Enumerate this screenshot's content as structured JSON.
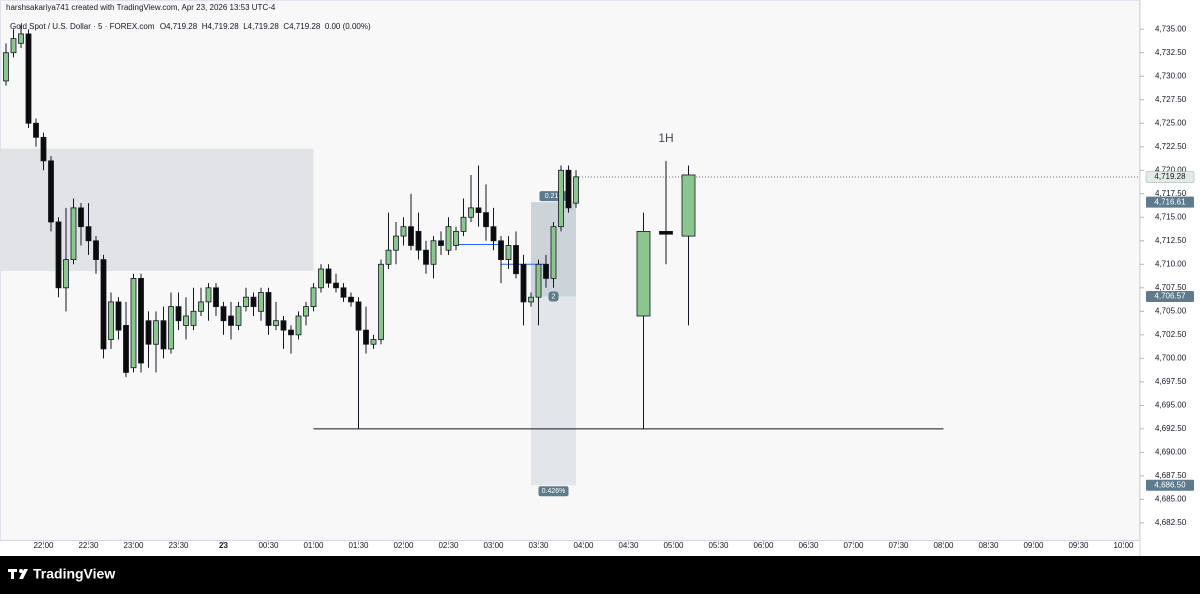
{
  "chart_data": {
    "type": "candlestick",
    "credit": "harshsakariya741 created with TradingView.com, Apr 23, 2026 13:53 UTC-4",
    "title": "Gold Spot / U.S. Dollar · 5 · FOREX.com",
    "ohlc_legend": [
      "O4,719.28",
      "H4,719.28",
      "L4,719.28",
      "C4,719.28",
      "0.00 (0.00%)"
    ],
    "brand": "TradingView",
    "up_color": "#8cc68f",
    "down_color": "#0b0b0b",
    "xlim": [
      "21:31",
      "10:11"
    ],
    "ylim": [
      4681,
      4738
    ],
    "x": [
      "21:35",
      "21:40",
      "21:45",
      "21:50",
      "21:55",
      "22:00",
      "22:05",
      "22:10",
      "22:15",
      "22:20",
      "22:25",
      "22:30",
      "22:35",
      "22:40",
      "22:45",
      "22:50",
      "22:55",
      "23:00",
      "23:05",
      "23:10",
      "23:15",
      "23:20",
      "23:25",
      "23:30",
      "23:35",
      "23:40",
      "23:45",
      "23:50",
      "23:55",
      "00:00",
      "00:05",
      "00:10",
      "00:15",
      "00:20",
      "00:25",
      "00:30",
      "00:35",
      "00:40",
      "00:45",
      "00:50",
      "00:55",
      "01:00",
      "01:05",
      "01:10",
      "01:15",
      "01:20",
      "01:25",
      "01:30",
      "01:35",
      "01:40",
      "01:45",
      "01:50",
      "01:55",
      "02:00",
      "02:05",
      "02:10",
      "02:15",
      "02:20",
      "02:25",
      "02:30",
      "02:35",
      "02:40",
      "02:45",
      "02:50",
      "02:55",
      "03:00",
      "03:05",
      "03:10",
      "03:15",
      "03:20",
      "03:25",
      "03:30",
      "03:35",
      "03:40",
      "03:45",
      "03:50",
      "03:55"
    ],
    "open": [
      4729.5,
      4732.5,
      4733.5,
      4734.5,
      4725,
      4723.5,
      4721,
      4714.5,
      4707.5,
      4710.5,
      4716,
      4714,
      4712.5,
      4710.5,
      4702,
      4706,
      4703.5,
      4699,
      4708.5,
      4704,
      4701.5,
      4704,
      4701,
      4705.5,
      4703.5,
      4703.5,
      4705,
      4706,
      4707.5,
      4705.5,
      4704.5,
      4703.5,
      4705.5,
      4706.5,
      4705,
      4707,
      4703.5,
      4704,
      4703,
      4702.5,
      4704.5,
      4705.5,
      4707.5,
      4709.5,
      4708,
      4707.5,
      4706.5,
      4706,
      4703,
      4701.5,
      4702,
      4710,
      4711.5,
      4713,
      4714,
      4713.5,
      4711.5,
      4710,
      4712.5,
      4711.5,
      4712,
      4713.5,
      4715,
      4716,
      4715.5,
      4714,
      4712.5,
      4710.5,
      4712,
      4710,
      4706,
      4706.5,
      4710,
      4708.5,
      4714,
      4720,
      4716.5
    ],
    "high": [
      4733.5,
      4735,
      4735.5,
      4735,
      4725.5,
      4724,
      4721.5,
      4715,
      4716,
      4717,
      4716.5,
      4716.5,
      4713,
      4711,
      4707,
      4706.5,
      4706,
      4709,
      4709,
      4705,
      4705,
      4705.5,
      4707,
      4707,
      4706.5,
      4707.5,
      4707.5,
      4708,
      4708,
      4706,
      4706,
      4706,
      4707.5,
      4707,
      4707.5,
      4707.5,
      4706,
      4704.5,
      4703.5,
      4705,
      4706,
      4708,
      4710,
      4710,
      4709,
      4708,
      4707,
      4706.5,
      4705.5,
      4702.5,
      4710.5,
      4715.5,
      4714.5,
      4715,
      4717.5,
      4715.5,
      4712.5,
      4713,
      4713.5,
      4715,
      4714,
      4717,
      4719.5,
      4720.5,
      4718.5,
      4716,
      4713,
      4713,
      4713.5,
      4711,
      4707,
      4710.5,
      4711,
      4714.5,
      4720.5,
      4720.5,
      4720
    ],
    "low": [
      4729,
      4732,
      4733,
      4724.5,
      4722.5,
      4720,
      4713.5,
      4706.5,
      4705,
      4710,
      4712,
      4711,
      4709,
      4700,
      4701,
      4702,
      4698,
      4698.5,
      4698.5,
      4699,
      4698.5,
      4700,
      4700.5,
      4703,
      4702,
      4703,
      4704.5,
      4704,
      4704.5,
      4702.5,
      4702,
      4703,
      4705,
      4704.5,
      4704,
      4702.5,
      4703,
      4701,
      4700.5,
      4702,
      4703.5,
      4705,
      4707,
      4707.5,
      4707,
      4706,
      4705.5,
      4692.5,
      4700.5,
      4701,
      4701.5,
      4709.5,
      4710,
      4712,
      4711.5,
      4710.5,
      4709,
      4708.5,
      4711,
      4711,
      4711.5,
      4713,
      4714.5,
      4714,
      4712.5,
      4711.5,
      4708,
      4709.5,
      4708.5,
      4703.5,
      4705.5,
      4703.5,
      4707.5,
      4707.5,
      4713.5,
      4715.5,
      4716
    ],
    "close": [
      4732.5,
      4734,
      4734.5,
      4725,
      4723.5,
      4721,
      4714.5,
      4707.5,
      4710.5,
      4716,
      4714,
      4712.5,
      4710.5,
      4701,
      4706,
      4703,
      4698.5,
      4708.5,
      4699.5,
      4701.5,
      4704,
      4701,
      4705.5,
      4704,
      4704.5,
      4705,
      4706,
      4707.5,
      4705.5,
      4704,
      4703.5,
      4705.5,
      4706.5,
      4705.5,
      4707,
      4703.5,
      4704,
      4703,
      4702.5,
      4704.5,
      4705.5,
      4707.5,
      4709.5,
      4708,
      4707.5,
      4706.5,
      4706,
      4703,
      4701.5,
      4702,
      4710,
      4711.5,
      4713,
      4714,
      4712,
      4711.5,
      4710,
      4712.5,
      4712,
      4714,
      4713.5,
      4715,
      4716,
      4715.5,
      4714,
      4712.5,
      4710.5,
      4712,
      4709,
      4706,
      4706.5,
      4710,
      4708.5,
      4714,
      4720,
      4716,
      4719.3
    ],
    "htf": {
      "label": "1H",
      "x": [
        "04:40",
        "04:55",
        "05:10"
      ],
      "open": [
        4704.5,
        4713.5,
        4713
      ],
      "high": [
        4715.5,
        4721,
        4720.5
      ],
      "low": [
        4692.5,
        4710,
        4703.5
      ],
      "close": [
        4713.5,
        4713.2,
        4719.5
      ]
    },
    "zone": {
      "low": 4709.3,
      "high": 4722.3,
      "from": "21:31",
      "to": "01:00",
      "color": "#e2e3e7"
    },
    "levels": [
      {
        "price": 4692.5,
        "from": "01:00",
        "to": "08:00",
        "color": "#131722"
      },
      {
        "price": 4712.1,
        "from": "02:33",
        "to": "03:05",
        "color": "#2962ff"
      },
      {
        "price": 4710.0,
        "from": "03:05",
        "to": "03:35",
        "color": "#2962ff"
      }
    ],
    "position": {
      "from": "03:25",
      "to": "03:55",
      "top": 4716.61,
      "entry": 4706.57,
      "bottom": 4686.5,
      "top_label": "0.213",
      "entry_label": "2",
      "bottom_label": "0.426%"
    },
    "price_labels": [
      {
        "value": 4719.28,
        "label": "4,719.28",
        "bg": "#e3ece4",
        "fg": "#131722",
        "current": true
      },
      {
        "value": 4716.61,
        "label": "4,716.61",
        "bg": "#5d7b8c",
        "fg": "#ffffff"
      },
      {
        "value": 4706.57,
        "label": "4,706.57",
        "bg": "#5d7b8c",
        "fg": "#ffffff"
      },
      {
        "value": 4686.5,
        "label": "4,686.50",
        "bg": "#5d7b8c",
        "fg": "#ffffff"
      }
    ],
    "yticks": [
      {
        "value": 4682.5,
        "label": "4,682.50"
      },
      {
        "value": 4685,
        "label": "4,685.00"
      },
      {
        "value": 4687.5,
        "label": "4,687.50"
      },
      {
        "value": 4690,
        "label": "4,690.00"
      },
      {
        "value": 4692.5,
        "label": "4,692.50"
      },
      {
        "value": 4695,
        "label": "4,695.00"
      },
      {
        "value": 4697.5,
        "label": "4,697.50"
      },
      {
        "value": 4700,
        "label": "4,700.00"
      },
      {
        "value": 4702.5,
        "label": "4,702.50"
      },
      {
        "value": 4705,
        "label": "4,705.00"
      },
      {
        "value": 4707.5,
        "label": "4,707.50"
      },
      {
        "value": 4710,
        "label": "4,710.00"
      },
      {
        "value": 4712.5,
        "label": "4,712.50"
      },
      {
        "value": 4715,
        "label": "4,715.00"
      },
      {
        "value": 4717.5,
        "label": "4,717.50"
      },
      {
        "value": 4720,
        "label": "4,720.00"
      },
      {
        "value": 4722.5,
        "label": "4,722.50"
      },
      {
        "value": 4725,
        "label": "4,725.00"
      },
      {
        "value": 4727.5,
        "label": "4,727.50"
      },
      {
        "value": 4730,
        "label": "4,730.00"
      },
      {
        "value": 4732.5,
        "label": "4,732.50"
      },
      {
        "value": 4735,
        "label": "4,735.00"
      }
    ],
    "xticks": [
      "22:00",
      "22:30",
      "23:00",
      "23:30",
      {
        "value": "00:00",
        "label": "23"
      },
      "00:30",
      "01:00",
      "01:30",
      "02:00",
      "02:30",
      "03:00",
      "03:30",
      "04:00",
      "04:30",
      "05:00",
      "05:30",
      "06:00",
      "06:30",
      "07:00",
      "07:30",
      "08:00",
      "08:30",
      "09:00",
      "09:30",
      "10:00"
    ]
  }
}
